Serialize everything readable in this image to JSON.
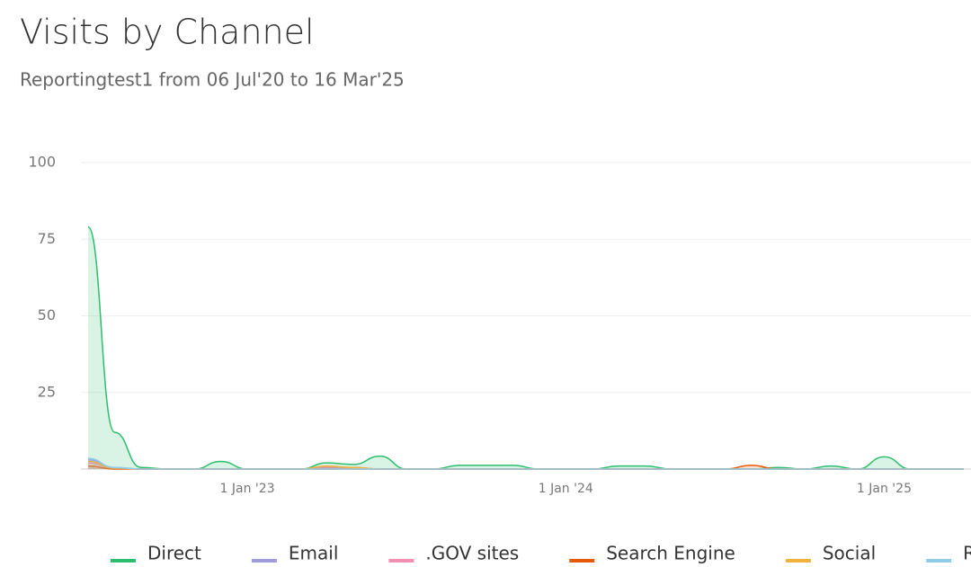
{
  "chart_data": {
    "type": "area",
    "title": "Visits by Channel",
    "subtitle": "Reportingtest1 from 06 Jul'20 to 16 Mar'25",
    "categories": [
      null,
      null,
      null,
      null,
      null,
      null,
      "1 Jan '23",
      null,
      null,
      null,
      null,
      null,
      null,
      null,
      null,
      null,
      null,
      null,
      "1 Jan '24",
      null,
      null,
      null,
      null,
      null,
      null,
      null,
      null,
      null,
      null,
      null,
      "1 Jan '25",
      null,
      null,
      null
    ],
    "series": [
      {
        "name": "Direct",
        "color": "#2ebd6e",
        "values": [
          79,
          12,
          0.5,
          0,
          0,
          2.5,
          0,
          0,
          0,
          2,
          1.5,
          4.2,
          0,
          0,
          1.2,
          1.2,
          1.2,
          0,
          0,
          0,
          1,
          1,
          0,
          0,
          0,
          0,
          0.5,
          0,
          1,
          0,
          4,
          0,
          0,
          0
        ]
      },
      {
        "name": "Email",
        "color": "#a29bdb",
        "values": [
          3,
          0.5,
          0,
          0,
          0,
          0,
          0,
          0,
          0,
          0.5,
          0.5,
          0,
          0,
          0,
          0,
          0,
          0,
          0,
          0,
          0,
          0,
          0,
          0,
          0,
          0,
          0,
          0,
          0,
          0,
          0,
          0,
          0,
          0,
          0
        ]
      },
      {
        "name": ".GOV sites",
        "color": "#f28fb1",
        "values": [
          2,
          0.3,
          0,
          0,
          0,
          0,
          0,
          0,
          0,
          0.8,
          0.5,
          0,
          0,
          0,
          0,
          0,
          0,
          0,
          0,
          0,
          0,
          0,
          0,
          0,
          0,
          0,
          0,
          0,
          0,
          0,
          0,
          0,
          0,
          0
        ]
      },
      {
        "name": "Search Engine",
        "color": "#e8590c",
        "values": [
          1,
          0,
          0,
          0,
          0,
          0,
          0,
          0,
          0,
          0,
          0,
          0,
          0,
          0,
          0,
          0,
          0,
          0,
          0,
          0,
          0,
          0,
          0,
          0,
          0,
          1.2,
          0,
          0,
          0,
          0,
          0,
          0,
          0,
          0
        ]
      },
      {
        "name": "Social",
        "color": "#f0b23a",
        "values": [
          2.5,
          0.3,
          0,
          0,
          0,
          0,
          0,
          0,
          0,
          1,
          0.5,
          0,
          0,
          0,
          0,
          0,
          0,
          0,
          0,
          0,
          0,
          0,
          0,
          0,
          0,
          0,
          0,
          0,
          0,
          0,
          0,
          0,
          0,
          0
        ]
      },
      {
        "name": "Referrals",
        "color": "#8ecbea",
        "values": [
          3.5,
          0.5,
          0,
          0,
          0,
          0,
          0,
          0,
          0,
          0,
          0,
          0,
          0,
          0,
          0,
          0,
          0,
          0,
          0,
          0,
          0,
          0,
          0,
          0,
          0,
          0,
          0,
          0,
          0,
          0,
          0,
          0,
          0,
          0
        ]
      }
    ],
    "ylim": [
      0,
      100
    ],
    "yticks": [
      25,
      50,
      75,
      100
    ],
    "grid": true
  }
}
